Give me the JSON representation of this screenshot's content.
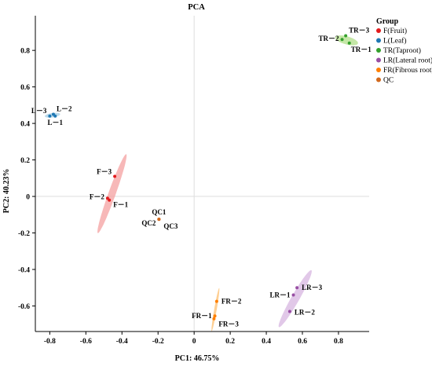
{
  "chart_data": {
    "type": "scatter",
    "title": "PCA",
    "xlabel": "PC1: 46.75%",
    "ylabel": "PC2: 40.23%",
    "xlim": [
      -0.88,
      0.97
    ],
    "ylim": [
      -0.74,
      0.99
    ],
    "xticks": [
      -0.8,
      -0.6,
      -0.4,
      -0.2,
      0,
      0.2,
      0.4,
      0.6,
      0.8
    ],
    "xtick_labels": [
      "-0.8",
      "-0.6",
      "-0.4",
      "-0.2",
      "0",
      "0.2",
      "0.4",
      "0.6",
      "0.8"
    ],
    "yticks": [
      -0.6,
      -0.4,
      -0.2,
      0,
      0.2,
      0.4,
      0.6,
      0.8
    ],
    "ytick_labels": [
      "-0.6",
      "-0.4",
      "-0.2",
      "0",
      "0.2",
      "0.4",
      "0.6",
      "0.8"
    ],
    "reference_lines": {
      "x": 0,
      "y": 0,
      "color": "#dddddd"
    },
    "grid": false,
    "legend": {
      "title": "Group",
      "placement": "right"
    },
    "series": [
      {
        "name": "F(Fruit)",
        "color": "#e31a1c",
        "ellipse_color": "#f4a0a0",
        "ellipse": {
          "center": [
            -0.455,
            0.015
          ],
          "semi_major": 0.23,
          "semi_minor": 0.02,
          "angle_deg": 70
        },
        "points": [
          {
            "label": "F－3",
            "x": -0.44,
            "y": 0.11
          },
          {
            "label": "F－2",
            "x": -0.48,
            "y": -0.01
          },
          {
            "label": "F－1",
            "x": -0.47,
            "y": -0.02
          }
        ]
      },
      {
        "name": "L(Leaf)",
        "color": "#1f78b4",
        "ellipse_color": "#a6cee3",
        "ellipse": {
          "center": [
            -0.785,
            0.445
          ],
          "semi_major": 0.043,
          "semi_minor": 0.012,
          "angle_deg": 8
        },
        "points": [
          {
            "label": "L－3",
            "x": -0.8,
            "y": 0.44
          },
          {
            "label": "L－2",
            "x": -0.78,
            "y": 0.45
          },
          {
            "label": "L－1",
            "x": -0.77,
            "y": 0.44
          }
        ]
      },
      {
        "name": "TR(Taproot)",
        "color": "#33a02c",
        "ellipse_color": "#b2df8a",
        "ellipse": {
          "center": [
            0.845,
            0.855
          ],
          "semi_major": 0.065,
          "semi_minor": 0.022,
          "angle_deg": -15
        },
        "points": [
          {
            "label": "TR－3",
            "x": 0.84,
            "y": 0.88
          },
          {
            "label": "TR－2",
            "x": 0.82,
            "y": 0.86
          },
          {
            "label": "TR－1",
            "x": 0.86,
            "y": 0.84
          }
        ]
      },
      {
        "name": "LR(Lateral root)",
        "color": "#984ea3",
        "ellipse_color": "#d7b5e0",
        "ellipse": {
          "center": [
            0.56,
            -0.56
          ],
          "semi_major": 0.18,
          "semi_minor": 0.022,
          "angle_deg": 60
        },
        "points": [
          {
            "label": "LR－3",
            "x": 0.57,
            "y": -0.5
          },
          {
            "label": "LR－1",
            "x": 0.55,
            "y": -0.54
          },
          {
            "label": "LR－2",
            "x": 0.53,
            "y": -0.63
          }
        ]
      },
      {
        "name": "FR(Fibrous root)",
        "color": "#ff7f00",
        "ellipse_color": "#fdbf6f",
        "ellipse": {
          "center": [
            0.118,
            -0.62
          ],
          "semi_major": 0.12,
          "semi_minor": 0.007,
          "angle_deg": 80
        },
        "points": [
          {
            "label": "FR－2",
            "x": 0.125,
            "y": -0.575
          },
          {
            "label": "FR－1",
            "x": 0.115,
            "y": -0.655
          },
          {
            "label": "FR－3",
            "x": 0.11,
            "y": -0.67
          }
        ]
      },
      {
        "name": "QC",
        "color": "#d2691e",
        "ellipse_color": null,
        "ellipse": null,
        "points": [
          {
            "label": "QC1",
            "x": -0.195,
            "y": -0.125
          },
          {
            "label": "QC2",
            "x": -0.195,
            "y": -0.125
          },
          {
            "label": "QC3",
            "x": -0.195,
            "y": -0.125
          }
        ]
      }
    ]
  }
}
